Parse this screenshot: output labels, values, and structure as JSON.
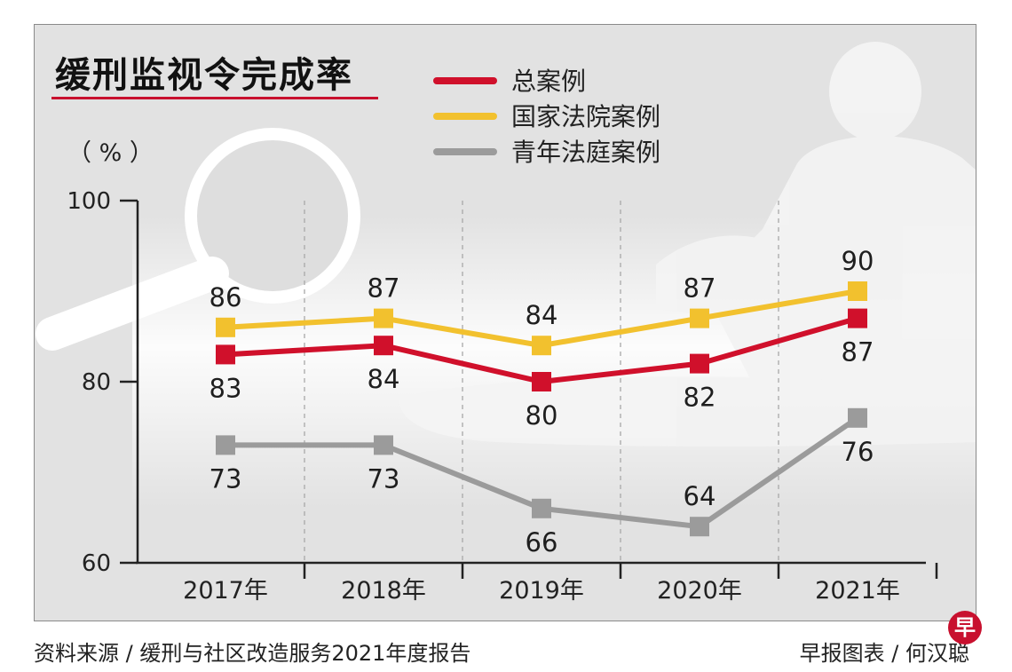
{
  "title": "缓刑监视令完成率",
  "unit_label": "（ % ）",
  "footer": {
    "source": "资料来源 / 缓刑与社区改造服务2021年度报告",
    "credit": "早报图表 / 何汉聪",
    "badge": "早"
  },
  "colors": {
    "background": "#e2e2e2",
    "total": "#d0102b",
    "state_courts": "#f2c12e",
    "youth_courts": "#9b9b9b",
    "axis": "#222222"
  },
  "chart_data": {
    "type": "line",
    "title": "缓刑监视令完成率",
    "ylabel": "（ % ）",
    "xlabel": "",
    "categories": [
      "2017年",
      "2018年",
      "2019年",
      "2020年",
      "2021年"
    ],
    "ylim": [
      60,
      100
    ],
    "yticks": [
      60,
      80,
      100
    ],
    "grid": "vertical dashed separators between years",
    "legend_position": "top",
    "series": [
      {
        "key": "state_courts",
        "name": "国家法院案例",
        "color": "#f2c12e",
        "values": [
          86,
          87,
          84,
          87,
          90
        ],
        "label_side": [
          "above",
          "above",
          "above",
          "above",
          "above"
        ]
      },
      {
        "key": "total",
        "name": "总案例",
        "color": "#d0102b",
        "values": [
          83,
          84,
          80,
          82,
          87
        ],
        "label_side": [
          "below",
          "below",
          "below",
          "below",
          "below"
        ]
      },
      {
        "key": "youth_courts",
        "name": "青年法庭案例",
        "color": "#9b9b9b",
        "values": [
          73,
          73,
          66,
          64,
          76
        ],
        "label_side": [
          "below",
          "below",
          "below",
          "above",
          "below"
        ]
      }
    ]
  }
}
